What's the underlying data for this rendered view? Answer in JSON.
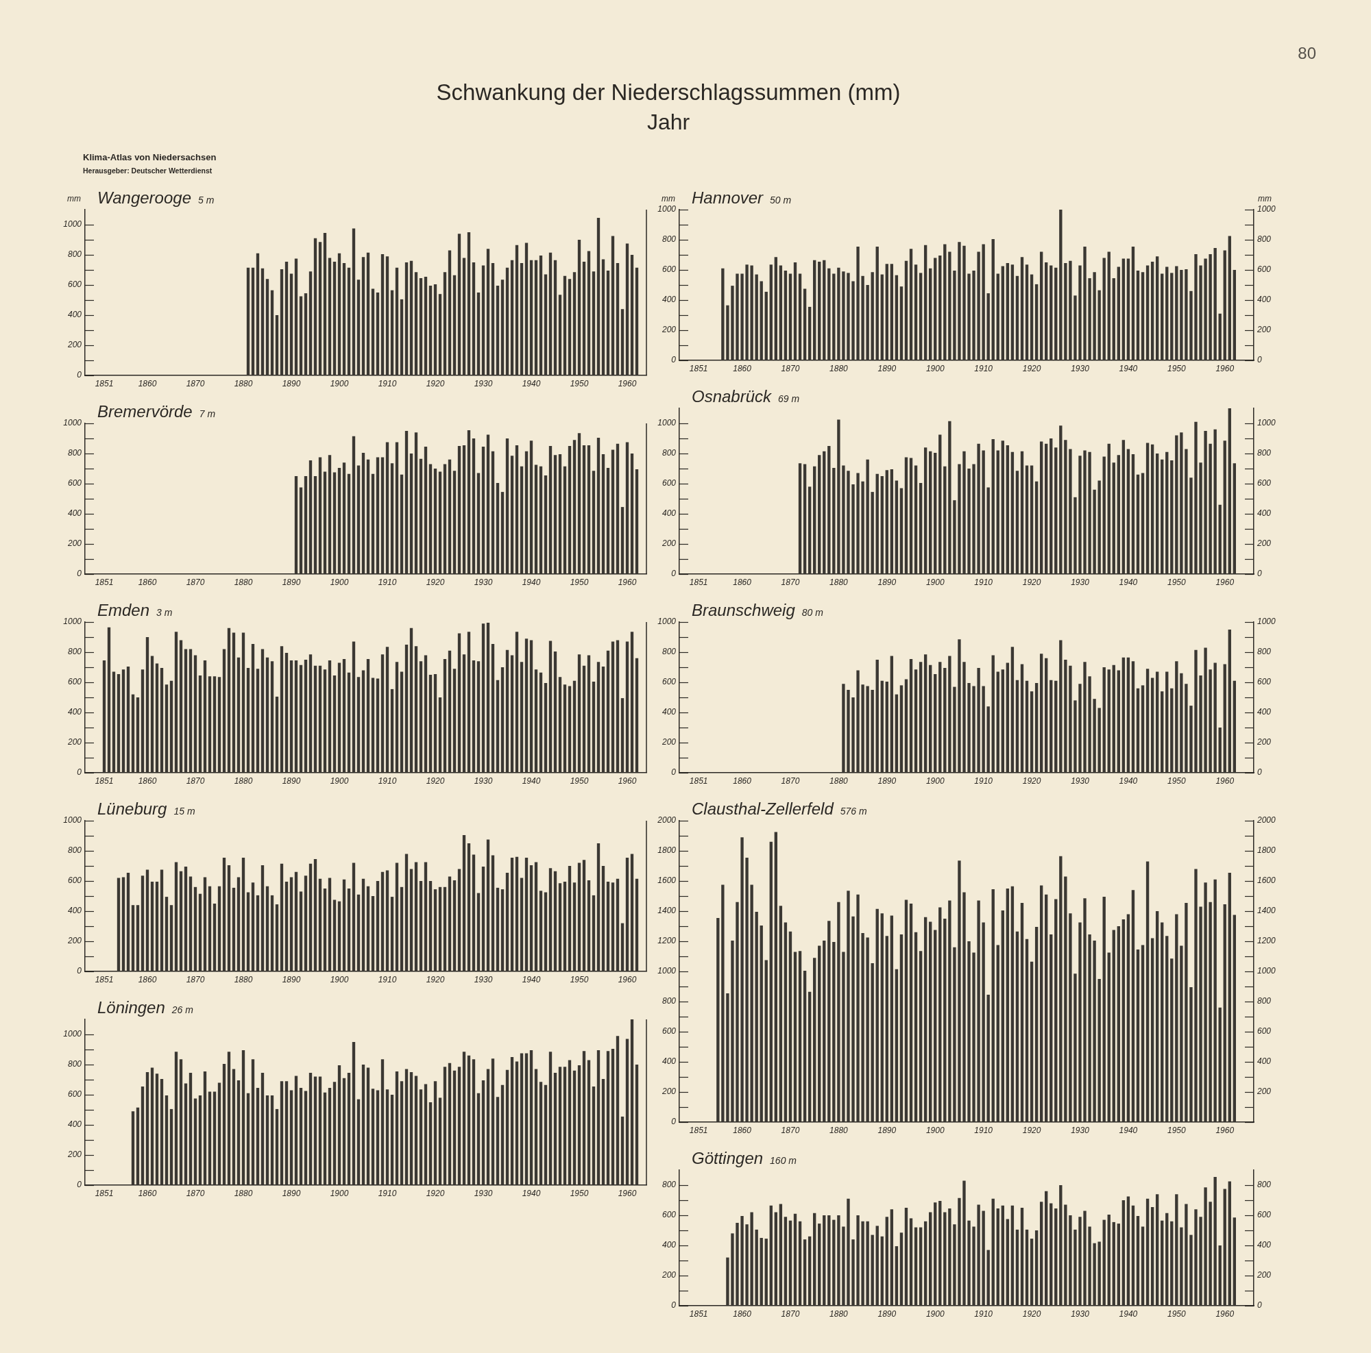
{
  "chart_data": [
    {
      "type": "other",
      "title": "Schwankung der Niederschlagssummen (mm)",
      "subtitle": "Jahr",
      "annotations": [
        "80",
        "Klima-Atlas von Niedersachsen",
        "Herausgeber: Deutscher Wetterdienst"
      ]
    },
    {
      "type": "bar",
      "title": "Wangerooge",
      "subtitle": "5 m",
      "ylabel": "mm",
      "color": "#3b3833",
      "x": [
        1881,
        1882,
        1883,
        1884,
        1885,
        1886,
        1887,
        1888,
        1889,
        1890,
        1891,
        1892,
        1893,
        1894,
        1895,
        1896,
        1897,
        1898,
        1899,
        1900,
        1901,
        1902,
        1903,
        1904,
        1905,
        1906,
        1907,
        1908,
        1909,
        1910,
        1911,
        1912,
        1913,
        1914,
        1915,
        1916,
        1917,
        1918,
        1919,
        1920,
        1921,
        1922,
        1923,
        1924,
        1925,
        1926,
        1927,
        1928,
        1929,
        1930,
        1931,
        1932,
        1933,
        1934,
        1935,
        1936,
        1937,
        1938,
        1939,
        1940,
        1941,
        1942,
        1943,
        1944,
        1945,
        1946,
        1947,
        1948,
        1949,
        1950,
        1951,
        1952,
        1953,
        1954,
        1955,
        1956,
        1957,
        1958,
        1959,
        1960,
        1961,
        1962
      ],
      "values": [
        715,
        715,
        810,
        710,
        640,
        565,
        400,
        705,
        755,
        675,
        775,
        525,
        545,
        690,
        910,
        885,
        945,
        780,
        755,
        810,
        745,
        715,
        975,
        635,
        785,
        815,
        575,
        550,
        805,
        790,
        565,
        715,
        505,
        750,
        760,
        685,
        645,
        655,
        595,
        605,
        540,
        685,
        830,
        665,
        940,
        780,
        950,
        750,
        550,
        730,
        840,
        745,
        595,
        635,
        715,
        765,
        865,
        745,
        880,
        765,
        765,
        795,
        670,
        815,
        765,
        535,
        660,
        640,
        685,
        900,
        755,
        825,
        690,
        1045,
        770,
        695,
        925,
        745,
        440,
        875,
        800,
        715
      ],
      "xlim": [
        1847,
        1964
      ],
      "xticks": [
        1851,
        1860,
        1870,
        1880,
        1890,
        1900,
        1910,
        1920,
        1930,
        1940,
        1950,
        1960
      ],
      "ylim": [
        0,
        1100
      ],
      "yticks": [
        0,
        {
          "value": 100,
          "label": null
        },
        200,
        {
          "value": 300,
          "label": null
        },
        400,
        {
          "value": 500,
          "label": null
        },
        600,
        {
          "value": 700,
          "label": null
        },
        800,
        {
          "value": 900,
          "label": null
        },
        1000
      ]
    },
    {
      "type": "bar",
      "title": "Hannover",
      "subtitle": "50 m",
      "ylabel": "mm",
      "y2label": "mm",
      "color": "#3b3833",
      "x": [
        1856,
        1857,
        1858,
        1859,
        1860,
        1861,
        1862,
        1863,
        1864,
        1865,
        1866,
        1867,
        1868,
        1869,
        1870,
        1871,
        1872,
        1873,
        1874,
        1875,
        1876,
        1877,
        1878,
        1879,
        1880,
        1881,
        1882,
        1883,
        1884,
        1885,
        1886,
        1887,
        1888,
        1889,
        1890,
        1891,
        1892,
        1893,
        1894,
        1895,
        1896,
        1897,
        1898,
        1899,
        1900,
        1901,
        1902,
        1903,
        1904,
        1905,
        1906,
        1907,
        1908,
        1909,
        1910,
        1911,
        1912,
        1913,
        1914,
        1915,
        1916,
        1917,
        1918,
        1919,
        1920,
        1921,
        1922,
        1923,
        1924,
        1925,
        1926,
        1927,
        1928,
        1929,
        1930,
        1931,
        1932,
        1933,
        1934,
        1935,
        1936,
        1937,
        1938,
        1939,
        1940,
        1941,
        1942,
        1943,
        1944,
        1945,
        1946,
        1947,
        1948,
        1949,
        1950,
        1951,
        1952,
        1953,
        1954,
        1955,
        1956,
        1957,
        1958,
        1959,
        1960,
        1961,
        1962
      ],
      "values": [
        610,
        365,
        495,
        575,
        575,
        635,
        630,
        570,
        525,
        455,
        635,
        685,
        630,
        595,
        575,
        650,
        575,
        475,
        355,
        665,
        655,
        665,
        610,
        575,
        615,
        590,
        580,
        525,
        755,
        560,
        500,
        585,
        755,
        570,
        640,
        640,
        565,
        490,
        660,
        740,
        635,
        580,
        765,
        610,
        680,
        695,
        770,
        720,
        595,
        785,
        760,
        575,
        595,
        720,
        770,
        445,
        805,
        575,
        625,
        645,
        635,
        560,
        685,
        635,
        570,
        505,
        720,
        650,
        630,
        615,
        1000,
        645,
        660,
        430,
        630,
        755,
        545,
        585,
        465,
        680,
        720,
        545,
        620,
        675,
        675,
        755,
        595,
        585,
        630,
        655,
        690,
        575,
        620,
        580,
        625,
        600,
        605,
        460,
        705,
        630,
        675,
        705,
        745,
        310,
        730,
        825,
        600
      ],
      "xlim": [
        1847,
        1966
      ],
      "xticks": [
        1851,
        1860,
        1870,
        1880,
        1890,
        1900,
        1910,
        1920,
        1930,
        1940,
        1950,
        1960
      ],
      "ylim": [
        0,
        1000
      ],
      "yticks": [
        0,
        {
          "value": 100,
          "label": null
        },
        200,
        {
          "value": 300,
          "label": null
        },
        400,
        {
          "value": 500,
          "label": null
        },
        600,
        {
          "value": 700,
          "label": null
        },
        800,
        {
          "value": 900,
          "label": null
        },
        1000
      ],
      "y2lim": [
        0,
        1000
      ],
      "y2ticks": [
        0,
        {
          "value": 100,
          "label": null
        },
        200,
        {
          "value": 300,
          "label": null
        },
        400,
        {
          "value": 500,
          "label": null
        },
        600,
        {
          "value": 700,
          "label": null
        },
        800,
        {
          "value": 900,
          "label": null
        },
        1000
      ]
    },
    {
      "type": "bar",
      "title": "Bremervörde",
      "subtitle": "7 m",
      "color": "#3b3833",
      "x": [
        1891,
        1892,
        1893,
        1894,
        1895,
        1896,
        1897,
        1898,
        1899,
        1900,
        1901,
        1902,
        1903,
        1904,
        1905,
        1906,
        1907,
        1908,
        1909,
        1910,
        1911,
        1912,
        1913,
        1914,
        1915,
        1916,
        1917,
        1918,
        1919,
        1920,
        1921,
        1922,
        1923,
        1924,
        1925,
        1926,
        1927,
        1928,
        1929,
        1930,
        1931,
        1932,
        1933,
        1934,
        1935,
        1936,
        1937,
        1938,
        1939,
        1940,
        1941,
        1942,
        1943,
        1944,
        1945,
        1946,
        1947,
        1948,
        1949,
        1950,
        1951,
        1952,
        1953,
        1954,
        1955,
        1956,
        1957,
        1958,
        1959,
        1960,
        1961,
        1962
      ],
      "values": [
        650,
        575,
        650,
        755,
        650,
        775,
        680,
        790,
        675,
        705,
        740,
        665,
        915,
        720,
        805,
        760,
        665,
        775,
        775,
        875,
        735,
        875,
        660,
        950,
        800,
        940,
        765,
        845,
        730,
        700,
        680,
        730,
        760,
        685,
        850,
        855,
        955,
        900,
        670,
        845,
        925,
        815,
        605,
        545,
        900,
        785,
        855,
        715,
        815,
        885,
        725,
        715,
        655,
        850,
        790,
        795,
        715,
        850,
        890,
        935,
        855,
        855,
        685,
        905,
        795,
        705,
        825,
        865,
        445,
        875,
        800,
        695
      ],
      "xlim": [
        1847,
        1964
      ],
      "xticks": [
        1851,
        1860,
        1870,
        1880,
        1890,
        1900,
        1910,
        1920,
        1930,
        1940,
        1950,
        1960
      ],
      "ylim": [
        0,
        1000
      ],
      "yticks": [
        0,
        {
          "value": 100,
          "label": null
        },
        200,
        {
          "value": 300,
          "label": null
        },
        400,
        {
          "value": 500,
          "label": null
        },
        600,
        {
          "value": 700,
          "label": null
        },
        800,
        {
          "value": 900,
          "label": null
        },
        1000
      ]
    },
    {
      "type": "bar",
      "title": "Osnabrück",
      "subtitle": "69 m",
      "color": "#3b3833",
      "x": [
        1872,
        1873,
        1874,
        1875,
        1876,
        1877,
        1878,
        1879,
        1880,
        1881,
        1882,
        1883,
        1884,
        1885,
        1886,
        1887,
        1888,
        1889,
        1890,
        1891,
        1892,
        1893,
        1894,
        1895,
        1896,
        1897,
        1898,
        1899,
        1900,
        1901,
        1902,
        1903,
        1904,
        1905,
        1906,
        1907,
        1908,
        1909,
        1910,
        1911,
        1912,
        1913,
        1914,
        1915,
        1916,
        1917,
        1918,
        1919,
        1920,
        1921,
        1922,
        1923,
        1924,
        1925,
        1926,
        1927,
        1928,
        1929,
        1930,
        1931,
        1932,
        1933,
        1934,
        1935,
        1936,
        1937,
        1938,
        1939,
        1940,
        1941,
        1942,
        1943,
        1944,
        1945,
        1946,
        1947,
        1948,
        1949,
        1950,
        1951,
        1952,
        1953,
        1954,
        1955,
        1956,
        1957,
        1958,
        1959,
        1960,
        1961,
        1962
      ],
      "values": [
        735,
        730,
        580,
        715,
        790,
        815,
        850,
        705,
        1025,
        720,
        685,
        595,
        670,
        615,
        760,
        545,
        665,
        650,
        690,
        695,
        620,
        570,
        775,
        770,
        720,
        605,
        840,
        815,
        805,
        925,
        715,
        1015,
        490,
        730,
        815,
        700,
        730,
        865,
        820,
        575,
        895,
        820,
        885,
        855,
        810,
        685,
        815,
        720,
        720,
        615,
        880,
        865,
        900,
        840,
        985,
        890,
        830,
        510,
        785,
        820,
        810,
        560,
        620,
        780,
        865,
        740,
        790,
        890,
        830,
        795,
        660,
        670,
        870,
        860,
        800,
        760,
        810,
        755,
        920,
        940,
        830,
        640,
        1010,
        740,
        950,
        865,
        960,
        460,
        885,
        1100,
        735
      ],
      "xlim": [
        1847,
        1966
      ],
      "xticks": [
        1851,
        1860,
        1870,
        1880,
        1890,
        1900,
        1910,
        1920,
        1930,
        1940,
        1950,
        1960
      ],
      "ylim": [
        0,
        1100
      ],
      "yticks": [
        0,
        {
          "value": 100,
          "label": null
        },
        200,
        {
          "value": 300,
          "label": null
        },
        400,
        {
          "value": 500,
          "label": null
        },
        600,
        {
          "value": 700,
          "label": null
        },
        800,
        {
          "value": 900,
          "label": null
        },
        1000
      ],
      "y2lim": [
        0,
        1100
      ],
      "y2ticks": [
        0,
        {
          "value": 100,
          "label": null
        },
        200,
        {
          "value": 300,
          "label": null
        },
        400,
        {
          "value": 500,
          "label": null
        },
        600,
        {
          "value": 700,
          "label": null
        },
        800,
        {
          "value": 900,
          "label": null
        },
        1000
      ]
    },
    {
      "type": "bar",
      "title": "Emden",
      "subtitle": "3 m",
      "color": "#3b3833",
      "x": [
        1851,
        1852,
        1853,
        1854,
        1855,
        1856,
        1857,
        1858,
        1859,
        1860,
        1861,
        1862,
        1863,
        1864,
        1865,
        1866,
        1867,
        1868,
        1869,
        1870,
        1871,
        1872,
        1873,
        1874,
        1875,
        1876,
        1877,
        1878,
        1879,
        1880,
        1881,
        1882,
        1883,
        1884,
        1885,
        1886,
        1887,
        1888,
        1889,
        1890,
        1891,
        1892,
        1893,
        1894,
        1895,
        1896,
        1897,
        1898,
        1899,
        1900,
        1901,
        1902,
        1903,
        1904,
        1905,
        1906,
        1907,
        1908,
        1909,
        1910,
        1911,
        1912,
        1913,
        1914,
        1915,
        1916,
        1917,
        1918,
        1919,
        1920,
        1921,
        1922,
        1923,
        1924,
        1925,
        1926,
        1927,
        1928,
        1929,
        1930,
        1931,
        1932,
        1933,
        1934,
        1935,
        1936,
        1937,
        1938,
        1939,
        1940,
        1941,
        1942,
        1943,
        1944,
        1945,
        1946,
        1947,
        1948,
        1949,
        1950,
        1951,
        1952,
        1953,
        1954,
        1955,
        1956,
        1957,
        1958,
        1959,
        1960,
        1961,
        1962
      ],
      "values": [
        745,
        965,
        670,
        655,
        685,
        705,
        520,
        500,
        685,
        900,
        775,
        725,
        695,
        585,
        610,
        935,
        880,
        820,
        820,
        780,
        645,
        745,
        640,
        640,
        635,
        820,
        960,
        930,
        765,
        930,
        695,
        855,
        690,
        820,
        765,
        740,
        505,
        840,
        795,
        745,
        745,
        715,
        750,
        785,
        710,
        710,
        685,
        745,
        645,
        730,
        755,
        665,
        870,
        635,
        680,
        755,
        630,
        625,
        785,
        835,
        555,
        735,
        670,
        850,
        960,
        840,
        740,
        780,
        650,
        655,
        500,
        755,
        810,
        690,
        925,
        785,
        935,
        745,
        740,
        990,
        995,
        855,
        615,
        700,
        815,
        780,
        935,
        735,
        890,
        880,
        685,
        665,
        595,
        875,
        805,
        635,
        585,
        575,
        610,
        785,
        710,
        780,
        605,
        735,
        705,
        810,
        870,
        880,
        495,
        870,
        935,
        760
      ],
      "xlim": [
        1847,
        1964
      ],
      "xticks": [
        1851,
        1860,
        1870,
        1880,
        1890,
        1900,
        1910,
        1920,
        1930,
        1940,
        1950,
        1960
      ],
      "ylim": [
        0,
        1000
      ],
      "yticks": [
        0,
        {
          "value": 100,
          "label": null
        },
        200,
        {
          "value": 300,
          "label": null
        },
        400,
        {
          "value": 500,
          "label": null
        },
        600,
        {
          "value": 700,
          "label": null
        },
        800,
        {
          "value": 900,
          "label": null
        },
        1000
      ]
    },
    {
      "type": "bar",
      "title": "Braunschweig",
      "subtitle": "80 m",
      "color": "#3b3833",
      "x": [
        1881,
        1882,
        1883,
        1884,
        1885,
        1886,
        1887,
        1888,
        1889,
        1890,
        1891,
        1892,
        1893,
        1894,
        1895,
        1896,
        1897,
        1898,
        1899,
        1900,
        1901,
        1902,
        1903,
        1904,
        1905,
        1906,
        1907,
        1908,
        1909,
        1910,
        1911,
        1912,
        1913,
        1914,
        1915,
        1916,
        1917,
        1918,
        1919,
        1920,
        1921,
        1922,
        1923,
        1924,
        1925,
        1926,
        1927,
        1928,
        1929,
        1930,
        1931,
        1932,
        1933,
        1934,
        1935,
        1936,
        1937,
        1938,
        1939,
        1940,
        1941,
        1942,
        1943,
        1944,
        1945,
        1946,
        1947,
        1948,
        1949,
        1950,
        1951,
        1952,
        1953,
        1954,
        1955,
        1956,
        1957,
        1958,
        1959,
        1960,
        1961,
        1962
      ],
      "values": [
        590,
        550,
        500,
        680,
        585,
        575,
        550,
        750,
        610,
        605,
        775,
        520,
        580,
        620,
        755,
        685,
        735,
        785,
        715,
        655,
        735,
        695,
        775,
        570,
        885,
        735,
        595,
        575,
        695,
        575,
        440,
        780,
        670,
        685,
        730,
        835,
        615,
        720,
        610,
        540,
        595,
        790,
        760,
        615,
        610,
        880,
        750,
        710,
        480,
        590,
        735,
        640,
        490,
        430,
        700,
        685,
        715,
        680,
        765,
        765,
        740,
        560,
        580,
        690,
        630,
        670,
        540,
        670,
        560,
        740,
        660,
        590,
        445,
        815,
        645,
        830,
        685,
        730,
        300,
        720,
        950,
        610
      ],
      "xlim": [
        1847,
        1966
      ],
      "xticks": [
        1851,
        1860,
        1870,
        1880,
        1890,
        1900,
        1910,
        1920,
        1930,
        1940,
        1950,
        1960
      ],
      "ylim": [
        0,
        1000
      ],
      "yticks": [
        0,
        {
          "value": 100,
          "label": null
        },
        200,
        {
          "value": 300,
          "label": null
        },
        400,
        {
          "value": 500,
          "label": null
        },
        600,
        {
          "value": 700,
          "label": null
        },
        800,
        {
          "value": 900,
          "label": null
        },
        1000
      ],
      "y2lim": [
        0,
        1000
      ],
      "y2ticks": [
        0,
        {
          "value": 100,
          "label": null
        },
        200,
        {
          "value": 300,
          "label": null
        },
        400,
        {
          "value": 500,
          "label": null
        },
        600,
        {
          "value": 700,
          "label": null
        },
        800,
        {
          "value": 900,
          "label": null
        },
        1000
      ]
    },
    {
      "type": "bar",
      "title": "Lüneburg",
      "subtitle": "15 m",
      "color": "#3b3833",
      "x": [
        1854,
        1855,
        1856,
        1857,
        1858,
        1859,
        1860,
        1861,
        1862,
        1863,
        1864,
        1865,
        1866,
        1867,
        1868,
        1869,
        1870,
        1871,
        1872,
        1873,
        1874,
        1875,
        1876,
        1877,
        1878,
        1879,
        1880,
        1881,
        1882,
        1883,
        1884,
        1885,
        1886,
        1887,
        1888,
        1889,
        1890,
        1891,
        1892,
        1893,
        1894,
        1895,
        1896,
        1897,
        1898,
        1899,
        1900,
        1901,
        1902,
        1903,
        1904,
        1905,
        1906,
        1907,
        1908,
        1909,
        1910,
        1911,
        1912,
        1913,
        1914,
        1915,
        1916,
        1917,
        1918,
        1919,
        1920,
        1921,
        1922,
        1923,
        1924,
        1925,
        1926,
        1927,
        1928,
        1929,
        1930,
        1931,
        1932,
        1933,
        1934,
        1935,
        1936,
        1937,
        1938,
        1939,
        1940,
        1941,
        1942,
        1943,
        1944,
        1945,
        1946,
        1947,
        1948,
        1949,
        1950,
        1951,
        1952,
        1953,
        1954,
        1955,
        1956,
        1957,
        1958,
        1959,
        1960,
        1961,
        1962
      ],
      "values": [
        620,
        625,
        655,
        440,
        440,
        635,
        675,
        595,
        595,
        675,
        495,
        440,
        725,
        665,
        695,
        630,
        560,
        515,
        625,
        565,
        450,
        565,
        755,
        705,
        555,
        625,
        755,
        525,
        590,
        505,
        705,
        565,
        505,
        445,
        715,
        595,
        625,
        660,
        530,
        635,
        715,
        745,
        615,
        550,
        620,
        475,
        465,
        610,
        550,
        720,
        510,
        615,
        565,
        500,
        600,
        660,
        670,
        495,
        720,
        560,
        780,
        680,
        725,
        600,
        725,
        600,
        545,
        560,
        560,
        630,
        605,
        680,
        905,
        850,
        775,
        520,
        695,
        875,
        770,
        555,
        545,
        655,
        755,
        760,
        620,
        755,
        705,
        725,
        535,
        525,
        685,
        665,
        585,
        595,
        700,
        590,
        720,
        740,
        605,
        505,
        850,
        700,
        595,
        590,
        615,
        320,
        755,
        780,
        615
      ],
      "xlim": [
        1847,
        1964
      ],
      "xticks": [
        1851,
        1860,
        1870,
        1880,
        1890,
        1900,
        1910,
        1920,
        1930,
        1940,
        1950,
        1960
      ],
      "ylim": [
        0,
        1000
      ],
      "yticks": [
        0,
        {
          "value": 100,
          "label": null
        },
        200,
        {
          "value": 300,
          "label": null
        },
        400,
        {
          "value": 500,
          "label": null
        },
        600,
        {
          "value": 700,
          "label": null
        },
        800,
        {
          "value": 900,
          "label": null
        },
        1000
      ]
    },
    {
      "type": "bar",
      "title": "Clausthal-Zellerfeld",
      "subtitle": "576 m",
      "color": "#3b3833",
      "x": [
        1855,
        1856,
        1857,
        1858,
        1859,
        1860,
        1861,
        1862,
        1863,
        1864,
        1865,
        1866,
        1867,
        1868,
        1869,
        1870,
        1871,
        1872,
        1873,
        1874,
        1875,
        1876,
        1877,
        1878,
        1879,
        1880,
        1881,
        1882,
        1883,
        1884,
        1885,
        1886,
        1887,
        1888,
        1889,
        1890,
        1891,
        1892,
        1893,
        1894,
        1895,
        1896,
        1897,
        1898,
        1899,
        1900,
        1901,
        1902,
        1903,
        1904,
        1905,
        1906,
        1907,
        1908,
        1909,
        1910,
        1911,
        1912,
        1913,
        1914,
        1915,
        1916,
        1917,
        1918,
        1919,
        1920,
        1921,
        1922,
        1923,
        1924,
        1925,
        1926,
        1927,
        1928,
        1929,
        1930,
        1931,
        1932,
        1933,
        1934,
        1935,
        1936,
        1937,
        1938,
        1939,
        1940,
        1941,
        1942,
        1943,
        1944,
        1945,
        1946,
        1947,
        1948,
        1949,
        1950,
        1951,
        1952,
        1953,
        1954,
        1955,
        1956,
        1957,
        1958,
        1959,
        1960,
        1961,
        1962
      ],
      "values": [
        1355,
        1575,
        855,
        1205,
        1460,
        1890,
        1755,
        1575,
        1395,
        1305,
        1075,
        1860,
        1925,
        1435,
        1325,
        1265,
        1130,
        1135,
        1005,
        865,
        1090,
        1170,
        1205,
        1335,
        1195,
        1460,
        1130,
        1535,
        1365,
        1510,
        1255,
        1225,
        1055,
        1415,
        1385,
        1235,
        1370,
        1015,
        1245,
        1475,
        1450,
        1260,
        1135,
        1360,
        1330,
        1275,
        1425,
        1350,
        1470,
        1160,
        1735,
        1525,
        1200,
        1125,
        1470,
        1325,
        845,
        1545,
        1175,
        1405,
        1550,
        1565,
        1265,
        1455,
        1215,
        1065,
        1295,
        1570,
        1510,
        1245,
        1480,
        1765,
        1630,
        1385,
        985,
        1325,
        1485,
        1245,
        1205,
        950,
        1495,
        1125,
        1275,
        1300,
        1345,
        1380,
        1540,
        1145,
        1175,
        1730,
        1220,
        1400,
        1325,
        1235,
        1085,
        1380,
        1170,
        1455,
        895,
        1680,
        1430,
        1590,
        1460,
        1610,
        760,
        1445,
        1655,
        1375
      ],
      "xlim": [
        1847,
        1966
      ],
      "xticks": [
        1851,
        1860,
        1870,
        1880,
        1890,
        1900,
        1910,
        1920,
        1930,
        1940,
        1950,
        1960
      ],
      "ylim": [
        0,
        2000
      ],
      "yticks": [
        0,
        {
          "value": 100,
          "label": null
        },
        200,
        {
          "value": 300,
          "label": null
        },
        400,
        {
          "value": 500,
          "label": null
        },
        600,
        {
          "value": 700,
          "label": null
        },
        800,
        {
          "value": 900,
          "label": null
        },
        1000,
        {
          "value": 1100,
          "label": null
        },
        1200,
        {
          "value": 1300,
          "label": null
        },
        1400,
        {
          "value": 1500,
          "label": null
        },
        1600,
        {
          "value": 1700,
          "label": null
        },
        1800,
        {
          "value": 1900,
          "label": null
        },
        2000
      ],
      "y2lim": [
        0,
        2000
      ],
      "y2ticks": [
        {
          "value": 0,
          "label": null
        },
        {
          "value": 100,
          "label": null
        },
        200,
        {
          "value": 300,
          "label": null
        },
        400,
        {
          "value": 500,
          "label": null
        },
        600,
        {
          "value": 700,
          "label": null
        },
        800,
        {
          "value": 900,
          "label": null
        },
        1000,
        {
          "value": 1100,
          "label": null
        },
        1200,
        {
          "value": 1300,
          "label": null
        },
        1400,
        {
          "value": 1500,
          "label": null
        },
        1600,
        {
          "value": 1700,
          "label": null
        },
        1800,
        {
          "value": 1900,
          "label": null
        },
        2000
      ]
    },
    {
      "type": "bar",
      "title": "Löningen",
      "subtitle": "26 m",
      "color": "#3b3833",
      "x": [
        1857,
        1858,
        1859,
        1860,
        1861,
        1862,
        1863,
        1864,
        1865,
        1866,
        1867,
        1868,
        1869,
        1870,
        1871,
        1872,
        1873,
        1874,
        1875,
        1876,
        1877,
        1878,
        1879,
        1880,
        1881,
        1882,
        1883,
        1884,
        1885,
        1886,
        1887,
        1888,
        1889,
        1890,
        1891,
        1892,
        1893,
        1894,
        1895,
        1896,
        1897,
        1898,
        1899,
        1900,
        1901,
        1902,
        1903,
        1904,
        1905,
        1906,
        1907,
        1908,
        1909,
        1910,
        1911,
        1912,
        1913,
        1914,
        1915,
        1916,
        1917,
        1918,
        1919,
        1920,
        1921,
        1922,
        1923,
        1924,
        1925,
        1926,
        1927,
        1928,
        1929,
        1930,
        1931,
        1932,
        1933,
        1934,
        1935,
        1936,
        1937,
        1938,
        1939,
        1940,
        1941,
        1942,
        1943,
        1944,
        1945,
        1946,
        1947,
        1948,
        1949,
        1950,
        1951,
        1952,
        1953,
        1954,
        1955,
        1956,
        1957,
        1958,
        1959,
        1960,
        1961,
        1962
      ],
      "values": [
        490,
        515,
        655,
        750,
        780,
        740,
        705,
        595,
        505,
        885,
        835,
        675,
        745,
        575,
        595,
        755,
        620,
        620,
        680,
        805,
        885,
        770,
        695,
        895,
        610,
        835,
        645,
        745,
        595,
        595,
        505,
        690,
        690,
        630,
        725,
        645,
        625,
        745,
        720,
        720,
        615,
        645,
        685,
        795,
        710,
        745,
        950,
        570,
        800,
        780,
        640,
        630,
        835,
        635,
        600,
        755,
        690,
        770,
        750,
        725,
        635,
        670,
        550,
        690,
        580,
        785,
        810,
        760,
        785,
        885,
        860,
        835,
        610,
        695,
        770,
        840,
        585,
        665,
        765,
        850,
        820,
        875,
        875,
        895,
        770,
        685,
        665,
        885,
        745,
        785,
        785,
        830,
        760,
        795,
        890,
        830,
        655,
        895,
        705,
        890,
        905,
        990,
        455,
        970,
        1100,
        800
      ],
      "xlim": [
        1847,
        1964
      ],
      "xticks": [
        1851,
        1860,
        1870,
        1880,
        1890,
        1900,
        1910,
        1920,
        1930,
        1940,
        1950,
        1960
      ],
      "ylim": [
        0,
        1100
      ],
      "yticks": [
        0,
        {
          "value": 100,
          "label": null
        },
        200,
        {
          "value": 300,
          "label": null
        },
        400,
        {
          "value": 500,
          "label": null
        },
        600,
        {
          "value": 700,
          "label": null
        },
        800,
        {
          "value": 900,
          "label": null
        },
        1000
      ]
    },
    {
      "type": "bar",
      "title": "Göttingen",
      "subtitle": "160 m",
      "color": "#3b3833",
      "x": [
        1857,
        1858,
        1859,
        1860,
        1861,
        1862,
        1863,
        1864,
        1865,
        1866,
        1867,
        1868,
        1869,
        1870,
        1871,
        1872,
        1873,
        1874,
        1875,
        1876,
        1877,
        1878,
        1879,
        1880,
        1881,
        1882,
        1883,
        1884,
        1885,
        1886,
        1887,
        1888,
        1889,
        1890,
        1891,
        1892,
        1893,
        1894,
        1895,
        1896,
        1897,
        1898,
        1899,
        1900,
        1901,
        1902,
        1903,
        1904,
        1905,
        1906,
        1907,
        1908,
        1909,
        1910,
        1911,
        1912,
        1913,
        1914,
        1915,
        1916,
        1917,
        1918,
        1919,
        1920,
        1921,
        1922,
        1923,
        1924,
        1925,
        1926,
        1927,
        1928,
        1929,
        1930,
        1931,
        1932,
        1933,
        1934,
        1935,
        1936,
        1937,
        1938,
        1939,
        1940,
        1941,
        1942,
        1943,
        1944,
        1945,
        1946,
        1947,
        1948,
        1949,
        1950,
        1951,
        1952,
        1953,
        1954,
        1955,
        1956,
        1957,
        1958,
        1959,
        1960,
        1961,
        1962
      ],
      "values": [
        320,
        480,
        550,
        595,
        540,
        620,
        505,
        450,
        445,
        665,
        620,
        675,
        590,
        565,
        610,
        560,
        440,
        460,
        615,
        545,
        600,
        600,
        570,
        600,
        525,
        710,
        440,
        600,
        560,
        560,
        470,
        530,
        460,
        590,
        640,
        395,
        485,
        650,
        580,
        520,
        520,
        560,
        620,
        685,
        695,
        620,
        645,
        540,
        715,
        830,
        565,
        525,
        670,
        630,
        370,
        710,
        645,
        665,
        575,
        665,
        505,
        650,
        505,
        445,
        500,
        690,
        760,
        680,
        645,
        800,
        670,
        600,
        505,
        590,
        630,
        525,
        415,
        425,
        570,
        605,
        555,
        545,
        700,
        725,
        665,
        595,
        525,
        710,
        655,
        740,
        565,
        615,
        560,
        740,
        520,
        675,
        470,
        640,
        590,
        785,
        690,
        855,
        400,
        775,
        825,
        585
      ],
      "xlim": [
        1847,
        1966
      ],
      "xticks": [
        1851,
        1860,
        1870,
        1880,
        1890,
        1900,
        1910,
        1920,
        1930,
        1940,
        1950,
        1960
      ],
      "ylim": [
        0,
        900
      ],
      "yticks": [
        0,
        {
          "value": 100,
          "label": null
        },
        200,
        {
          "value": 300,
          "label": null
        },
        400,
        {
          "value": 500,
          "label": null
        },
        600,
        {
          "value": 700,
          "label": null
        },
        800
      ],
      "y2lim": [
        0,
        900
      ],
      "y2ticks": [
        0,
        {
          "value": 100,
          "label": null
        },
        200,
        {
          "value": 300,
          "label": null
        },
        400,
        {
          "value": 500,
          "label": null
        },
        600,
        {
          "value": 700,
          "label": null
        },
        800
      ]
    }
  ]
}
